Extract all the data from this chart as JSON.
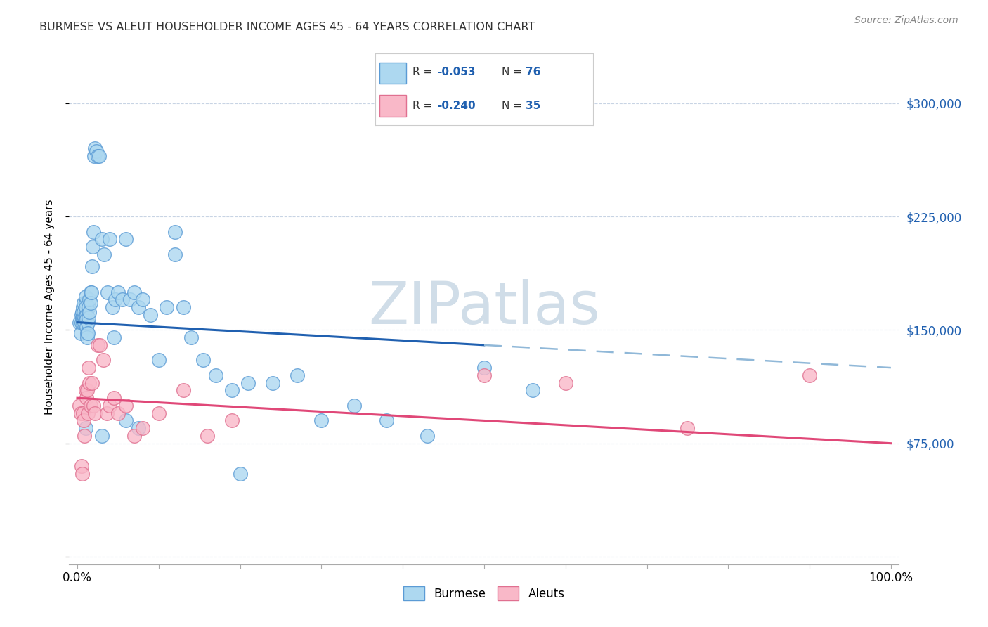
{
  "title": "BURMESE VS ALEUT HOUSEHOLDER INCOME AGES 45 - 64 YEARS CORRELATION CHART",
  "source": "Source: ZipAtlas.com",
  "ylabel": "Householder Income Ages 45 - 64 years",
  "xlim": [
    -0.01,
    1.01
  ],
  "ylim": [
    -5000,
    335000
  ],
  "yticks": [
    0,
    75000,
    150000,
    225000,
    300000
  ],
  "ytick_labels": [
    "",
    "$75,000",
    "$150,000",
    "$225,000",
    "$300,000"
  ],
  "xtick_labels": [
    "0.0%",
    "",
    "",
    "",
    "",
    "",
    "",
    "",
    "",
    "",
    "100.0%"
  ],
  "burmese_color": "#add8f0",
  "aleuts_color": "#f9b8c8",
  "burmese_edge_color": "#5b9bd5",
  "aleuts_edge_color": "#e07090",
  "trend_blue_color": "#2060b0",
  "trend_pink_color": "#e04878",
  "trend_dashed_color": "#90b8d8",
  "watermark_color": "#d0dde8",
  "background_color": "#ffffff",
  "grid_color": "#c8d4e4",
  "marker_size": 200,
  "burmese_x": [
    0.003,
    0.004,
    0.005,
    0.005,
    0.006,
    0.006,
    0.007,
    0.007,
    0.007,
    0.008,
    0.008,
    0.009,
    0.009,
    0.01,
    0.01,
    0.01,
    0.01,
    0.011,
    0.011,
    0.011,
    0.012,
    0.012,
    0.013,
    0.013,
    0.014,
    0.014,
    0.015,
    0.015,
    0.016,
    0.016,
    0.017,
    0.018,
    0.019,
    0.02,
    0.021,
    0.022,
    0.023,
    0.025,
    0.027,
    0.03,
    0.033,
    0.037,
    0.04,
    0.043,
    0.047,
    0.05,
    0.055,
    0.06,
    0.065,
    0.07,
    0.075,
    0.08,
    0.09,
    0.1,
    0.11,
    0.12,
    0.13,
    0.14,
    0.155,
    0.17,
    0.19,
    0.21,
    0.24,
    0.27,
    0.3,
    0.34,
    0.38,
    0.43,
    0.5,
    0.56,
    0.03,
    0.045,
    0.06,
    0.075,
    0.2,
    0.12,
    0.01
  ],
  "burmese_y": [
    155000,
    148000,
    160000,
    155000,
    162000,
    158000,
    165000,
    158000,
    155000,
    168000,
    162000,
    158000,
    155000,
    163000,
    168000,
    172000,
    165000,
    160000,
    157000,
    152000,
    148000,
    145000,
    155000,
    148000,
    165000,
    158000,
    162000,
    170000,
    175000,
    168000,
    175000,
    192000,
    205000,
    215000,
    265000,
    270000,
    268000,
    265000,
    265000,
    210000,
    200000,
    175000,
    210000,
    165000,
    170000,
    175000,
    170000,
    210000,
    170000,
    175000,
    165000,
    170000,
    160000,
    130000,
    165000,
    215000,
    165000,
    145000,
    130000,
    120000,
    110000,
    115000,
    115000,
    120000,
    90000,
    100000,
    90000,
    80000,
    125000,
    110000,
    80000,
    145000,
    90000,
    85000,
    55000,
    200000,
    85000
  ],
  "aleuts_x": [
    0.003,
    0.004,
    0.005,
    0.006,
    0.007,
    0.008,
    0.009,
    0.01,
    0.011,
    0.012,
    0.013,
    0.014,
    0.015,
    0.016,
    0.018,
    0.02,
    0.022,
    0.025,
    0.028,
    0.032,
    0.036,
    0.04,
    0.045,
    0.05,
    0.06,
    0.07,
    0.08,
    0.1,
    0.13,
    0.16,
    0.19,
    0.5,
    0.6,
    0.75,
    0.9
  ],
  "aleuts_y": [
    100000,
    95000,
    60000,
    55000,
    95000,
    90000,
    80000,
    110000,
    105000,
    110000,
    95000,
    125000,
    115000,
    100000,
    115000,
    100000,
    95000,
    140000,
    140000,
    130000,
    95000,
    100000,
    105000,
    95000,
    100000,
    80000,
    85000,
    95000,
    110000,
    80000,
    90000,
    120000,
    115000,
    85000,
    120000
  ],
  "trend_blue_x0": 0.0,
  "trend_blue_y0": 155000,
  "trend_blue_x1": 0.5,
  "trend_blue_y1": 140000,
  "trend_dash_x0": 0.5,
  "trend_dash_y0": 140000,
  "trend_dash_x1": 1.0,
  "trend_dash_y1": 125000,
  "trend_pink_x0": 0.0,
  "trend_pink_y0": 105000,
  "trend_pink_x1": 1.0,
  "trend_pink_y1": 75000
}
